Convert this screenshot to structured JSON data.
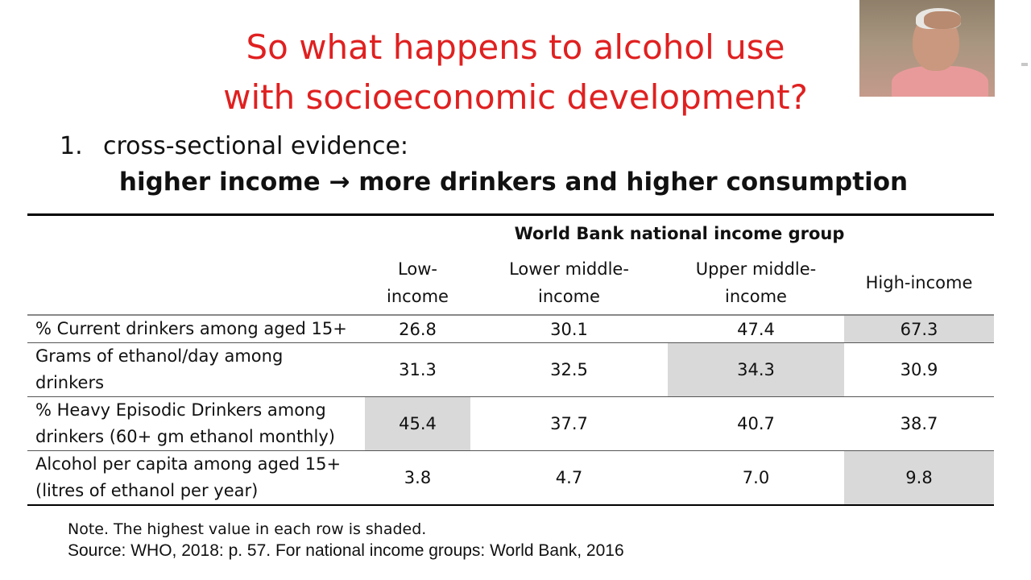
{
  "slide": {
    "title_line1": "So what happens to alcohol use",
    "title_line2": "with socioeconomic development?",
    "point_number": "1.",
    "point_text": "cross-sectional evidence:",
    "claim": "higher income → more drinkers and higher consumption"
  },
  "table": {
    "group_header": "World Bank national income group",
    "columns": [
      {
        "line1": "Low-",
        "line2": "income"
      },
      {
        "line1": "Lower middle-",
        "line2": "income"
      },
      {
        "line1": "Upper middle-",
        "line2": "income"
      },
      {
        "line1": "High-income",
        "line2": ""
      }
    ],
    "rows": [
      {
        "label_line1": "% Current drinkers among aged 15+",
        "label_line2": "",
        "values": [
          "26.8",
          "30.1",
          "47.4",
          "67.3"
        ],
        "shaded_index": 3
      },
      {
        "label_line1": "Grams of ethanol/day among",
        "label_line2": "drinkers",
        "values": [
          "31.3",
          "32.5",
          "34.3",
          "30.9"
        ],
        "shaded_index": 2
      },
      {
        "label_line1": "% Heavy Episodic Drinkers among",
        "label_line2": "drinkers (60+ gm ethanol monthly)",
        "values": [
          "45.4",
          "37.7",
          "40.7",
          "38.7"
        ],
        "shaded_index": 0
      },
      {
        "label_line1": "Alcohol per capita among aged 15+",
        "label_line2": "(litres of ethanol per year)",
        "values": [
          "3.8",
          "4.7",
          "7.0",
          "9.8"
        ],
        "shaded_index": 3
      }
    ]
  },
  "footer": {
    "note": "Note. The highest value in each row is shaded.",
    "source": "Source: WHO, 2018: p. 57.  For national income groups: World Bank, 2016"
  },
  "colors": {
    "title": "#e02020",
    "shade": "#d9d9d9"
  }
}
